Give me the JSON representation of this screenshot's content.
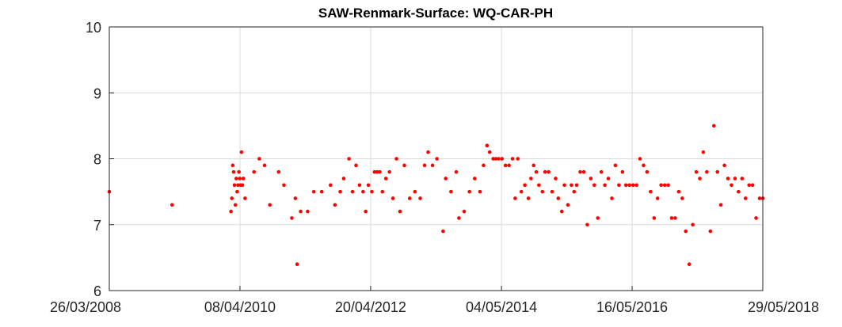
{
  "chart_data": {
    "type": "scatter",
    "title": "SAW-Renmark-Surface: WQ-CAR-PH",
    "xlabel": "",
    "ylabel": "",
    "x_type": "date",
    "xlim": [
      "2008-03-26",
      "2018-05-29"
    ],
    "ylim": [
      6,
      10
    ],
    "x_ticks": [
      "2008-03-26",
      "2010-04-08",
      "2012-04-20",
      "2014-05-04",
      "2016-05-16",
      "2018-05-29"
    ],
    "x_tick_labels": [
      "26/03/2008",
      "08/04/2010",
      "20/04/2012",
      "04/05/2014",
      "16/05/2016",
      "29/05/2018"
    ],
    "y_ticks": [
      6,
      7,
      8,
      9,
      10
    ],
    "y_tick_labels": [
      "6",
      "7",
      "8",
      "9",
      "10"
    ],
    "grid": true,
    "legend": "none",
    "marker_color": "#ff0000",
    "series": [
      {
        "points": [
          [
            "2008-03-26",
            7.5
          ],
          [
            "2009-03-18",
            7.3
          ],
          [
            "2010-02-16",
            7.2
          ],
          [
            "2010-02-21",
            7.4
          ],
          [
            "2010-02-26",
            7.9
          ],
          [
            "2010-03-03",
            7.8
          ],
          [
            "2010-03-08",
            7.6
          ],
          [
            "2010-03-13",
            7.3
          ],
          [
            "2010-03-18",
            7.7
          ],
          [
            "2010-03-23",
            7.5
          ],
          [
            "2010-03-28",
            7.6
          ],
          [
            "2010-04-02",
            7.8
          ],
          [
            "2010-04-07",
            7.7
          ],
          [
            "2010-04-12",
            7.6
          ],
          [
            "2010-04-17",
            8.1
          ],
          [
            "2010-04-22",
            7.6
          ],
          [
            "2010-04-27",
            7.7
          ],
          [
            "2010-05-07",
            7.4
          ],
          [
            "2010-06-27",
            7.8
          ],
          [
            "2010-07-27",
            8.0
          ],
          [
            "2010-08-26",
            7.9
          ],
          [
            "2010-09-25",
            7.3
          ],
          [
            "2010-11-14",
            7.8
          ],
          [
            "2010-12-14",
            7.6
          ],
          [
            "2011-01-28",
            7.1
          ],
          [
            "2011-02-17",
            7.4
          ],
          [
            "2011-02-27",
            6.4
          ],
          [
            "2011-03-19",
            7.2
          ],
          [
            "2011-04-28",
            7.2
          ],
          [
            "2011-06-02",
            7.5
          ],
          [
            "2011-07-17",
            7.5
          ],
          [
            "2011-09-05",
            7.6
          ],
          [
            "2011-09-30",
            7.3
          ],
          [
            "2011-10-30",
            7.5
          ],
          [
            "2011-11-19",
            7.7
          ],
          [
            "2011-12-19",
            8.0
          ],
          [
            "2012-01-08",
            7.5
          ],
          [
            "2012-01-28",
            7.9
          ],
          [
            "2012-02-17",
            7.6
          ],
          [
            "2012-03-08",
            7.5
          ],
          [
            "2012-03-23",
            7.2
          ],
          [
            "2012-04-07",
            7.6
          ],
          [
            "2012-04-27",
            7.5
          ],
          [
            "2012-05-12",
            7.8
          ],
          [
            "2012-05-27",
            7.8
          ],
          [
            "2012-06-11",
            7.8
          ],
          [
            "2012-06-26",
            7.5
          ],
          [
            "2012-07-16",
            7.7
          ],
          [
            "2012-08-05",
            7.8
          ],
          [
            "2012-08-25",
            7.4
          ],
          [
            "2012-09-14",
            8.0
          ],
          [
            "2012-10-04",
            7.2
          ],
          [
            "2012-10-29",
            7.9
          ],
          [
            "2012-11-28",
            7.4
          ],
          [
            "2012-12-28",
            7.5
          ],
          [
            "2013-01-27",
            7.4
          ],
          [
            "2013-02-21",
            7.9
          ],
          [
            "2013-03-13",
            8.1
          ],
          [
            "2013-04-07",
            7.9
          ],
          [
            "2013-05-02",
            8.0
          ],
          [
            "2013-06-06",
            6.9
          ],
          [
            "2013-06-21",
            7.7
          ],
          [
            "2013-07-21",
            7.5
          ],
          [
            "2013-08-20",
            7.8
          ],
          [
            "2013-09-04",
            7.1
          ],
          [
            "2013-10-04",
            7.2
          ],
          [
            "2013-11-03",
            7.5
          ],
          [
            "2013-12-03",
            7.7
          ],
          [
            "2014-01-02",
            7.5
          ],
          [
            "2014-01-22",
            7.9
          ],
          [
            "2014-02-11",
            8.2
          ],
          [
            "2014-02-26",
            8.1
          ],
          [
            "2014-03-18",
            8.0
          ],
          [
            "2014-04-02",
            8.0
          ],
          [
            "2014-04-17",
            8.0
          ],
          [
            "2014-05-07",
            8.0
          ],
          [
            "2014-05-27",
            7.9
          ],
          [
            "2014-06-16",
            7.9
          ],
          [
            "2014-07-06",
            8.0
          ],
          [
            "2014-07-21",
            7.4
          ],
          [
            "2014-08-05",
            8.0
          ],
          [
            "2014-08-25",
            7.5
          ],
          [
            "2014-09-14",
            7.6
          ],
          [
            "2014-10-04",
            7.4
          ],
          [
            "2014-10-19",
            7.7
          ],
          [
            "2014-11-03",
            7.9
          ],
          [
            "2014-11-18",
            7.8
          ],
          [
            "2014-12-03",
            7.6
          ],
          [
            "2014-12-23",
            7.5
          ],
          [
            "2015-01-07",
            7.8
          ],
          [
            "2015-01-27",
            7.8
          ],
          [
            "2015-02-16",
            7.5
          ],
          [
            "2015-03-08",
            7.7
          ],
          [
            "2015-03-23",
            7.4
          ],
          [
            "2015-04-12",
            7.2
          ],
          [
            "2015-04-27",
            7.6
          ],
          [
            "2015-05-17",
            7.3
          ],
          [
            "2015-06-06",
            7.6
          ],
          [
            "2015-06-21",
            7.5
          ],
          [
            "2015-07-06",
            7.6
          ],
          [
            "2015-07-26",
            7.8
          ],
          [
            "2015-08-15",
            7.8
          ],
          [
            "2015-09-04",
            7.0
          ],
          [
            "2015-09-24",
            7.7
          ],
          [
            "2015-10-14",
            7.6
          ],
          [
            "2015-11-03",
            7.1
          ],
          [
            "2015-11-23",
            7.8
          ],
          [
            "2015-12-13",
            7.6
          ],
          [
            "2016-01-02",
            7.7
          ],
          [
            "2016-01-22",
            7.4
          ],
          [
            "2016-02-11",
            7.9
          ],
          [
            "2016-03-02",
            7.6
          ],
          [
            "2016-03-22",
            7.8
          ],
          [
            "2016-04-11",
            7.6
          ],
          [
            "2016-05-01",
            7.6
          ],
          [
            "2016-05-21",
            7.6
          ],
          [
            "2016-06-10",
            7.6
          ],
          [
            "2016-06-30",
            8.0
          ],
          [
            "2016-07-20",
            7.9
          ],
          [
            "2016-08-09",
            7.8
          ],
          [
            "2016-08-29",
            7.5
          ],
          [
            "2016-09-18",
            7.1
          ],
          [
            "2016-10-08",
            7.4
          ],
          [
            "2016-10-28",
            7.6
          ],
          [
            "2016-11-17",
            7.6
          ],
          [
            "2016-12-07",
            7.6
          ],
          [
            "2016-12-27",
            7.1
          ],
          [
            "2017-01-16",
            7.1
          ],
          [
            "2017-02-05",
            7.5
          ],
          [
            "2017-02-25",
            7.4
          ],
          [
            "2017-03-17",
            6.9
          ],
          [
            "2017-04-06",
            6.4
          ],
          [
            "2017-04-26",
            7.0
          ],
          [
            "2017-05-16",
            7.8
          ],
          [
            "2017-06-05",
            7.7
          ],
          [
            "2017-06-25",
            8.1
          ],
          [
            "2017-07-15",
            7.8
          ],
          [
            "2017-08-04",
            6.9
          ],
          [
            "2017-08-24",
            8.5
          ],
          [
            "2017-09-13",
            7.8
          ],
          [
            "2017-10-03",
            7.3
          ],
          [
            "2017-10-23",
            7.9
          ],
          [
            "2017-11-12",
            7.7
          ],
          [
            "2017-12-02",
            7.6
          ],
          [
            "2017-12-22",
            7.7
          ],
          [
            "2018-01-11",
            7.5
          ],
          [
            "2018-01-31",
            7.7
          ],
          [
            "2018-02-20",
            7.4
          ],
          [
            "2018-03-12",
            7.6
          ],
          [
            "2018-04-01",
            7.6
          ],
          [
            "2018-04-21",
            7.1
          ],
          [
            "2018-05-11",
            7.4
          ],
          [
            "2018-05-29",
            7.4
          ]
        ]
      }
    ]
  }
}
